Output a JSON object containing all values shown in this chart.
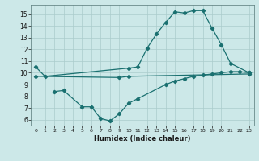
{
  "xlabel": "Humidex (Indice chaleur)",
  "bg_color": "#cce8e8",
  "grid_color": "#aacccc",
  "line_color": "#1a7070",
  "xlim": [
    -0.5,
    23.5
  ],
  "ylim": [
    5.5,
    15.8
  ],
  "xticks": [
    0,
    1,
    2,
    3,
    4,
    5,
    6,
    7,
    8,
    9,
    10,
    11,
    12,
    13,
    14,
    15,
    16,
    17,
    18,
    19,
    20,
    21,
    22,
    23
  ],
  "yticks": [
    6,
    7,
    8,
    9,
    10,
    11,
    12,
    13,
    14,
    15
  ],
  "line1_x": [
    0,
    1,
    10,
    11,
    12,
    13,
    14,
    15,
    16,
    17,
    18,
    19,
    20,
    21,
    23
  ],
  "line1_y": [
    10.5,
    9.7,
    10.4,
    10.5,
    12.1,
    13.3,
    14.3,
    15.2,
    15.1,
    15.3,
    15.3,
    13.8,
    12.4,
    10.8,
    10.0
  ],
  "line2_x": [
    2,
    3,
    5,
    6,
    7,
    8,
    9,
    10,
    11,
    14,
    15,
    16,
    17,
    18,
    19,
    20,
    21,
    22,
    23
  ],
  "line2_y": [
    8.4,
    8.5,
    7.1,
    7.1,
    6.1,
    5.9,
    6.5,
    7.4,
    7.8,
    9.0,
    9.3,
    9.5,
    9.7,
    9.8,
    9.9,
    10.0,
    10.1,
    10.1,
    10.0
  ],
  "line3_x": [
    0,
    9,
    10,
    23
  ],
  "line3_y": [
    9.7,
    9.6,
    9.7,
    9.9
  ]
}
